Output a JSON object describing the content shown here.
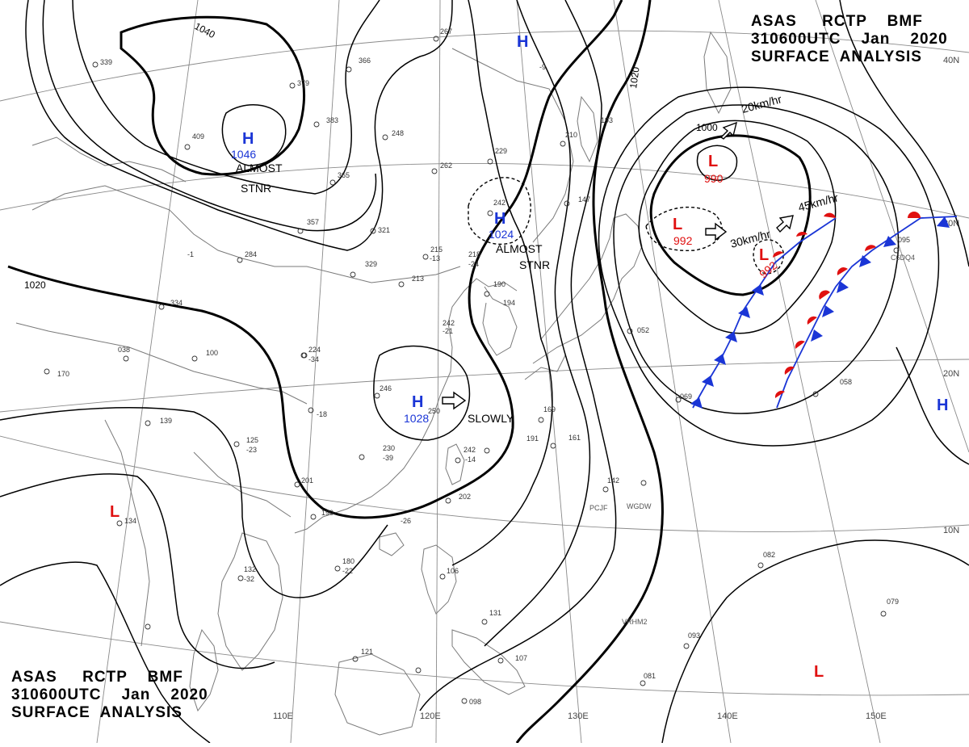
{
  "header": {
    "line1": "ASAS     RCTP    BMF",
    "line2": "310600UTC    Jan    2020",
    "line3": "SURFACE  ANALYSIS"
  },
  "footer": {
    "line1": "ASAS     RCTP    BMF",
    "line2": "310600UTC    Jan    2020",
    "line3": "SURFACE  ANALYSIS"
  },
  "colors": {
    "high": "#1a35d6",
    "low": "#e01010",
    "cold_front": "#1a35d6",
    "warm_front": "#e01010",
    "isobar": "#000000",
    "grid": "#888888",
    "coast": "#7a7a7a"
  },
  "longitude_labels": [
    "110E",
    "120E",
    "130E",
    "140E",
    "150E"
  ],
  "latitude_labels": [
    "40N",
    "30N",
    "20N",
    "10N"
  ],
  "isobar_labels": [
    "1040",
    "1020",
    "1020",
    "1000"
  ],
  "pressure_centers": [
    {
      "type": "H",
      "value": "1046"
    },
    {
      "type": "H",
      "value": "1024"
    },
    {
      "type": "H",
      "value": "1028"
    },
    {
      "type": "H",
      "value": ""
    },
    {
      "type": "H",
      "value": ""
    },
    {
      "type": "L",
      "value": "990"
    },
    {
      "type": "L",
      "value": "992"
    },
    {
      "type": "L",
      "value": "992"
    },
    {
      "type": "L",
      "value": ""
    },
    {
      "type": "L",
      "value": ""
    }
  ],
  "motion_labels": [
    "ALMOST",
    "STNR",
    "ALMOST",
    "STNR",
    "SLOWLY",
    "20km/hr",
    "45km/hr",
    "30km/hr"
  ],
  "station_labels": [
    "PCJF",
    "WGDW",
    "VRHM2",
    "C6DQ4"
  ],
  "station_values": [
    "267",
    "339",
    "379",
    "366",
    "383",
    "409",
    "365",
    "357",
    "321",
    "284",
    "329",
    "248",
    "229",
    "262",
    "242",
    "210",
    "193",
    "147",
    "215",
    "218",
    "213",
    "190",
    "194",
    "242",
    "246",
    "250",
    "230",
    "242",
    "202",
    "191",
    "169",
    "161",
    "142",
    "052",
    "069",
    "058",
    "095",
    "334",
    "038",
    "100",
    "224",
    "170",
    "139",
    "134",
    "125",
    "201",
    "190",
    "180",
    "132",
    "121",
    "107",
    "131",
    "106",
    "093",
    "081",
    "082",
    "079",
    "098",
    "-13",
    "-24",
    "-21",
    "-34",
    "-18",
    "-23",
    "-39",
    "-14",
    "-32",
    "-22",
    "-26",
    "-9",
    "-1"
  ]
}
